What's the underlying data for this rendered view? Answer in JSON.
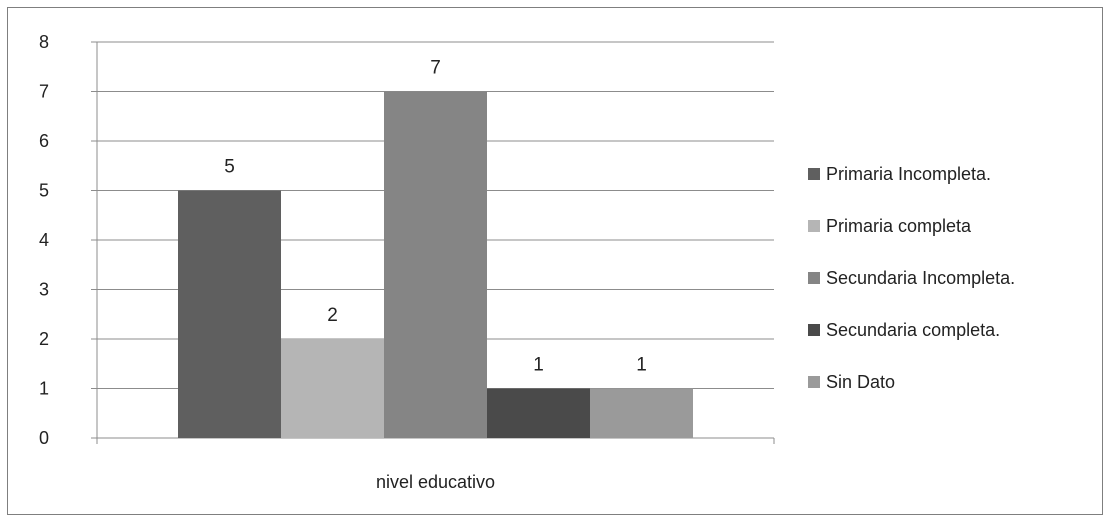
{
  "chart_data": {
    "type": "bar",
    "categories": [
      "nivel educativo"
    ],
    "series": [
      {
        "name": "Primaria Incompleta.",
        "values": [
          5
        ],
        "color": "#5f5f5f"
      },
      {
        "name": "Primaria completa",
        "values": [
          2
        ],
        "color": "#b5b5b5"
      },
      {
        "name": "Secundaria Incompleta.",
        "values": [
          7
        ],
        "color": "#858585"
      },
      {
        "name": "Secundaria completa.",
        "values": [
          1
        ],
        "color": "#4a4a4a"
      },
      {
        "name": "Sin Dato",
        "values": [
          1
        ],
        "color": "#9a9a9a"
      }
    ],
    "title": "",
    "xlabel": "",
    "ylabel": "",
    "ylim": [
      0,
      8
    ],
    "yticks": [
      0,
      1,
      2,
      3,
      4,
      5,
      6,
      7,
      8
    ],
    "grid": true,
    "legend_position": "right",
    "data_labels": true
  }
}
